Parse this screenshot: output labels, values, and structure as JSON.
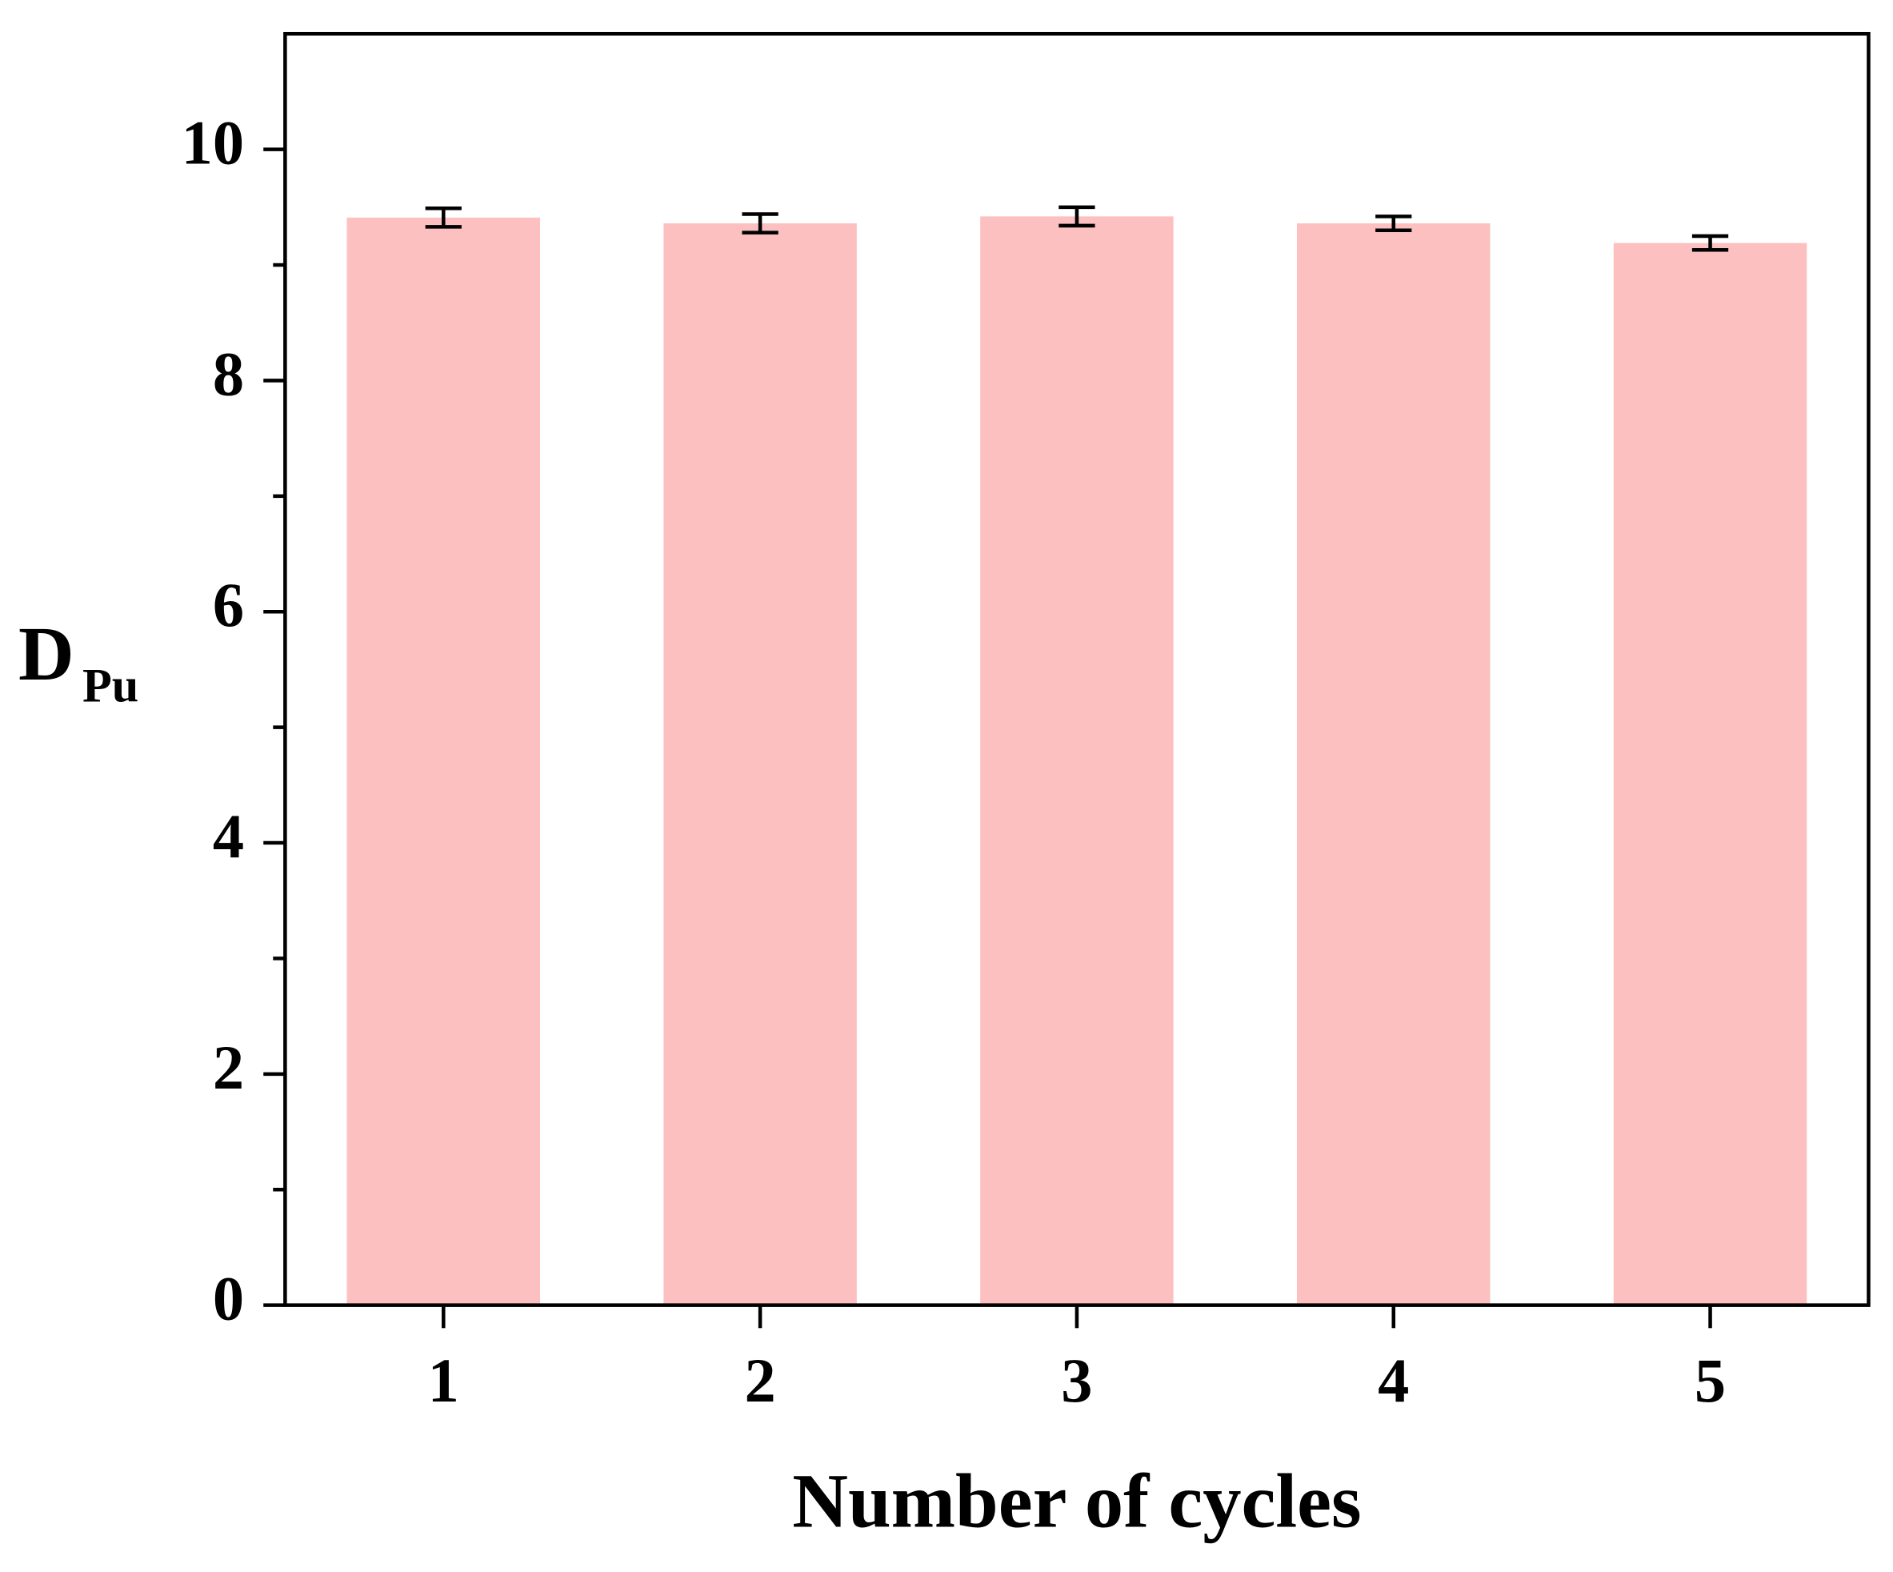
{
  "chart_data": {
    "type": "bar",
    "x_label": "Number of cycles",
    "y_label": "D",
    "y_label_subscript": "Pu",
    "categories": [
      "1",
      "2",
      "3",
      "4",
      "5"
    ],
    "values": [
      9.41,
      9.36,
      9.42,
      9.36,
      9.19
    ],
    "errors": [
      0.08,
      0.08,
      0.08,
      0.06,
      0.06
    ],
    "color": "#fcc0c0",
    "ylim": [
      0,
      11
    ],
    "yticks": [
      0,
      2,
      4,
      6,
      8,
      10
    ],
    "yminor_ticks": [
      1,
      3,
      5,
      7,
      9
    ]
  }
}
